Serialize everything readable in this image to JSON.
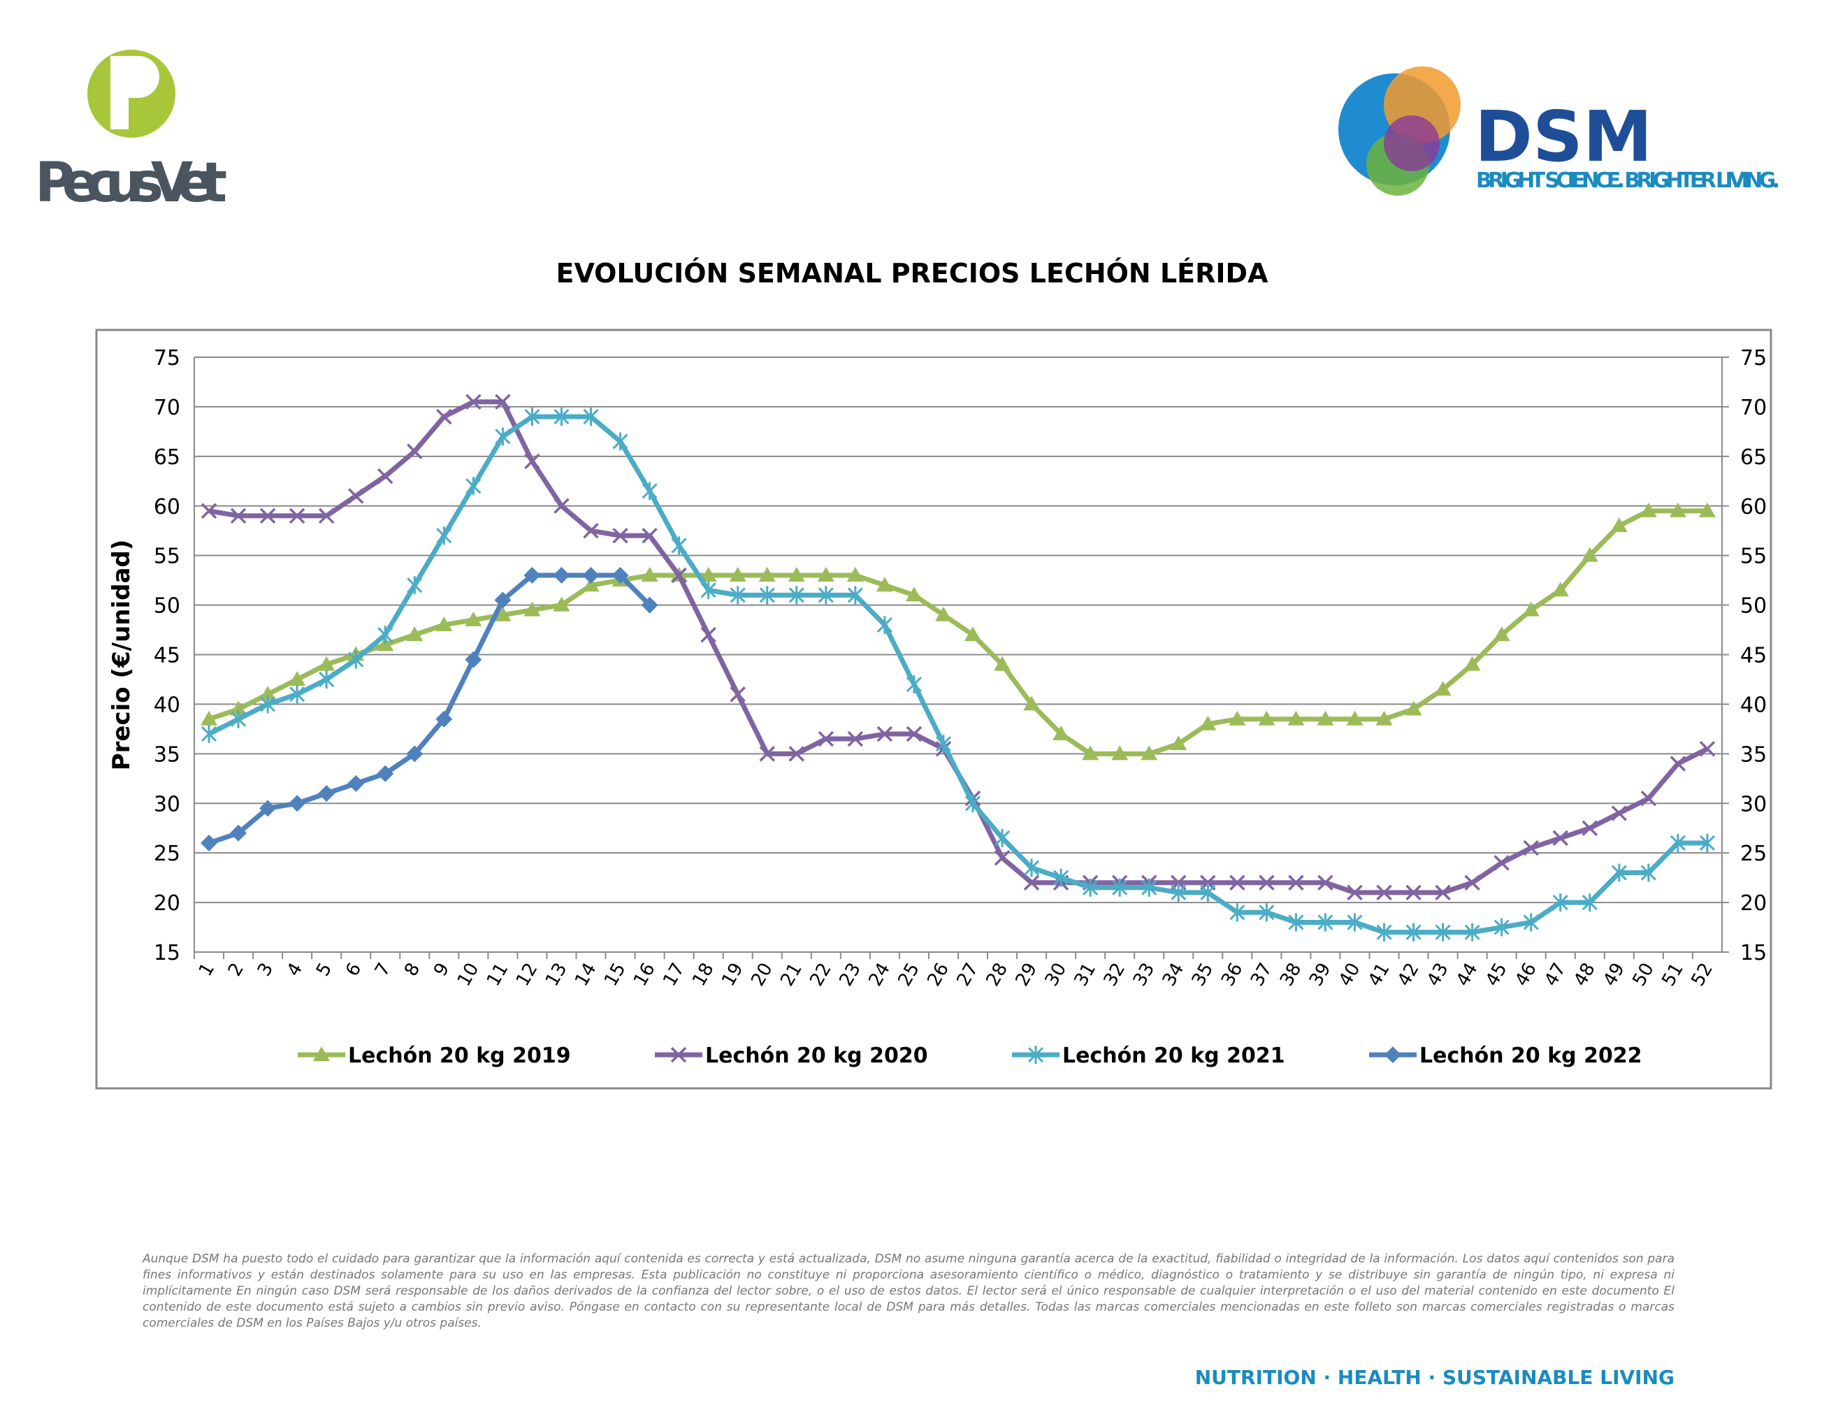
{
  "header": {
    "left_logo": "PecusVet",
    "right_logo": "DSM",
    "tagline": "BRIGHT SCIENCE. BRIGHTER LIVING."
  },
  "chart_data": {
    "type": "line",
    "title": "EVOLUCIÓN SEMANAL PRECIOS LECHÓN LÉRIDA",
    "y_label": "Precio (€/unidad)",
    "categories": [
      "1",
      "2",
      "3",
      "4",
      "5",
      "6",
      "7",
      "8",
      "9",
      "10",
      "11",
      "12",
      "13",
      "14",
      "15",
      "16",
      "17",
      "18",
      "19",
      "20",
      "21",
      "22",
      "23",
      "24",
      "25",
      "26",
      "27",
      "28",
      "29",
      "30",
      "31",
      "32",
      "33",
      "34",
      "35",
      "36",
      "37",
      "38",
      "39",
      "40",
      "41",
      "42",
      "43",
      "44",
      "45",
      "46",
      "47",
      "48",
      "49",
      "50",
      "51",
      "52"
    ],
    "series": [
      {
        "name": "Lechón 20 kg 2019",
        "color": "#9bbb59",
        "marker": "triangle",
        "values": [
          38.5,
          39.5,
          41,
          42.5,
          44,
          45,
          46,
          47,
          48,
          48.5,
          49,
          49.5,
          50,
          52,
          52.5,
          53,
          53,
          53,
          53,
          53,
          53,
          53,
          53,
          52,
          51,
          49,
          47,
          44,
          40,
          37,
          35,
          35,
          35,
          36,
          38,
          38.5,
          38.5,
          38.5,
          38.5,
          38.5,
          38.5,
          39.5,
          41.5,
          44,
          47,
          49.5,
          51.5,
          55,
          58,
          59.5,
          59.5,
          59.5
        ]
      },
      {
        "name": "Lechón 20 kg 2020",
        "color": "#8064a2",
        "marker": "x",
        "values": [
          59.5,
          59,
          59,
          59,
          59,
          61,
          63,
          65.5,
          69,
          70.5,
          70.5,
          64.5,
          60,
          57.5,
          57,
          57,
          53,
          47,
          41,
          35,
          35,
          36.5,
          36.5,
          37,
          37,
          35.5,
          30.5,
          24.5,
          22,
          22,
          22,
          22,
          22,
          22,
          22,
          22,
          22,
          22,
          22,
          21,
          21,
          21,
          21,
          22,
          24,
          25.5,
          26.5,
          27.5,
          29,
          30.5,
          34,
          35.5
        ]
      },
      {
        "name": "Lechón 20 kg 2021",
        "color": "#4bacc6",
        "marker": "asterisk",
        "values": [
          37,
          38.5,
          40,
          41,
          42.5,
          44.5,
          47,
          52,
          57,
          62,
          67,
          69,
          69,
          69,
          66.5,
          61.5,
          56,
          51.5,
          51,
          51,
          51,
          51,
          51,
          48,
          42,
          36,
          30,
          26.5,
          23.5,
          22.5,
          21.5,
          21.5,
          21.5,
          21,
          21,
          19,
          19,
          18,
          18,
          18,
          17,
          17,
          17,
          17,
          17.5,
          18,
          20,
          20,
          23,
          23,
          26,
          26
        ]
      },
      {
        "name": "Lechón 20 kg 2022",
        "color": "#4f81bd",
        "marker": "diamond",
        "values": [
          26,
          27,
          29.5,
          30,
          31,
          32,
          33,
          35,
          38.5,
          44.5,
          50.5,
          53,
          53,
          53,
          53,
          50,
          null,
          null,
          null,
          null,
          null,
          null,
          null,
          null,
          null,
          null,
          null,
          null,
          null,
          null,
          null,
          null,
          null,
          null,
          null,
          null,
          null,
          null,
          null,
          null,
          null,
          null,
          null,
          null,
          null,
          null,
          null,
          null,
          null,
          null,
          null,
          null
        ]
      }
    ],
    "ylim": [
      15,
      75
    ],
    "yticks": [
      15,
      20,
      25,
      30,
      35,
      40,
      45,
      50,
      55,
      60,
      65,
      70,
      75
    ],
    "y2lim": [
      15,
      75
    ],
    "y2ticks": [
      15,
      20,
      25,
      30,
      35,
      40,
      45,
      50,
      55,
      60,
      65,
      70,
      75
    ],
    "grid": true,
    "legend": "bottom"
  },
  "footer": {
    "disclaimer": "Aunque DSM ha puesto todo el cuidado para garantizar que la información aquí contenida es correcta y está actualizada, DSM no asume ninguna garantía acerca de la exactitud, fiabilidad o integridad de la información. Los datos aquí contenidos son para fines informativos y están destinados solamente para su uso en las empresas. Esta publicación no constituye ni proporciona asesoramiento científico o médico, diagnóstico o tratamiento y se distribuye sin garantía de ningún tipo, ni expresa ni implícitamente En ningún caso DSM será responsable de los daños derivados de la confianza del lector sobre, o el uso de estos datos. El lector será el único responsable de cualquier interpretación o el uso del material contenido en este documento El contenido de este documento está sujeto a cambios sin previo aviso. Póngase en contacto con su representante local de DSM para más detalles. Todas las marcas comerciales mencionadas en este folleto son marcas comerciales registradas o marcas comerciales de DSM en los Países Bajos y/u otros países.",
    "slogan": "NUTRITION · HEALTH · SUSTAINABLE LIVING"
  }
}
